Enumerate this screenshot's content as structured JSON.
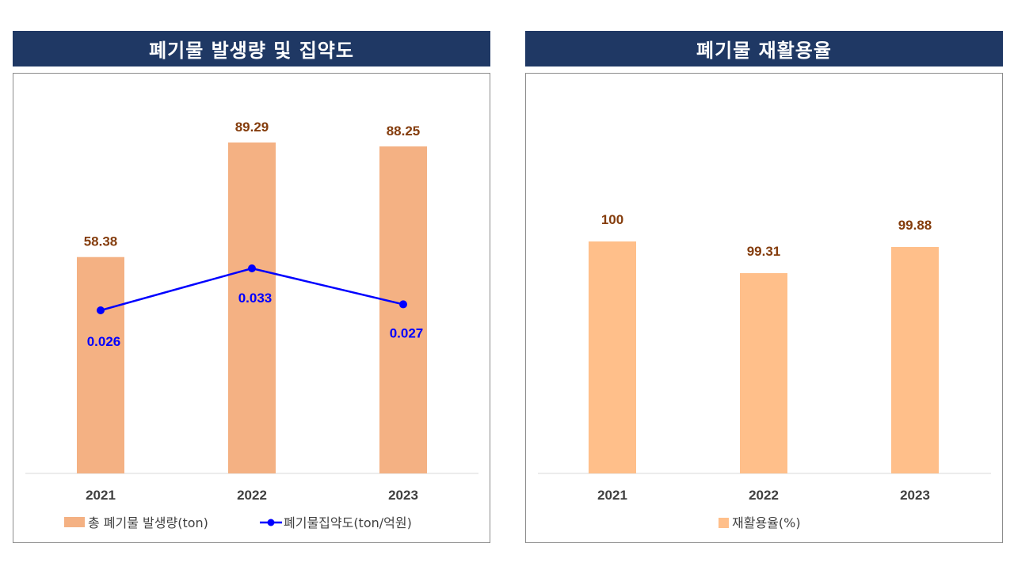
{
  "headers": {
    "left": "폐기물 발생량 및 집약도",
    "right": "폐기물 재활용율"
  },
  "colors": {
    "header_bg": "#1f3864",
    "bar_left": "#f4b183",
    "bar_right": "#ffbf8a",
    "line": "#0000ff",
    "bar_label": "#843c0c"
  },
  "chart_data": [
    {
      "type": "bar",
      "title": "폐기물 발생량 및 집약도",
      "categories": [
        "2021",
        "2022",
        "2023"
      ],
      "series": [
        {
          "name": "총 폐기물 발생량(ton)",
          "type": "bar",
          "values": [
            58.38,
            89.29,
            88.25
          ],
          "labels": [
            "58.38",
            "89.29",
            "88.25"
          ]
        },
        {
          "name": "폐기물집약도(ton/억원)",
          "type": "line",
          "values": [
            0.026,
            0.033,
            0.027
          ],
          "labels": [
            "0.026",
            "0.033",
            "0.027"
          ]
        }
      ],
      "legend": "bottom",
      "grid": false
    },
    {
      "type": "bar",
      "title": "폐기물 재활용율",
      "categories": [
        "2021",
        "2022",
        "2023"
      ],
      "series": [
        {
          "name": "재활용율(%)",
          "type": "bar",
          "values": [
            100,
            99.31,
            99.88
          ],
          "labels": [
            "100",
            "99.31",
            "99.88"
          ]
        }
      ],
      "legend": "bottom",
      "grid": false
    }
  ]
}
